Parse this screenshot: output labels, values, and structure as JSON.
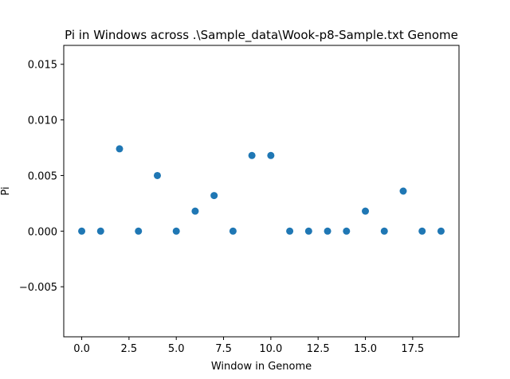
{
  "chart_data": {
    "type": "scatter",
    "title": "Pi in Windows across .\\Sample_data\\Wook-p8-Sample.txt Genome",
    "xlabel": "Window in Genome",
    "ylabel": "Pi",
    "xlim": [
      -0.95,
      19.95
    ],
    "ylim": [
      -0.0095,
      0.0167
    ],
    "xticks": [
      0.0,
      2.5,
      5.0,
      7.5,
      10.0,
      12.5,
      15.0,
      17.5
    ],
    "xtick_labels": [
      "0.0",
      "2.5",
      "5.0",
      "7.5",
      "10.0",
      "12.5",
      "15.0",
      "17.5"
    ],
    "yticks": [
      -0.005,
      0.0,
      0.005,
      0.01,
      0.015
    ],
    "ytick_labels": [
      "−0.005",
      "0.000",
      "0.005",
      "0.010",
      "0.015"
    ],
    "grid": false,
    "marker_color": "#1f77b4",
    "series": [
      {
        "x": [
          0,
          1,
          2,
          3,
          4,
          5,
          6,
          7,
          8,
          9,
          10,
          11,
          12,
          13,
          14,
          15,
          16,
          17,
          18,
          19
        ],
        "y": [
          0.0,
          0.0,
          0.0074,
          0.0,
          0.005,
          0.0,
          0.0018,
          0.0032,
          0.0,
          0.0068,
          0.0068,
          0.0,
          0.0,
          0.0,
          0.0,
          0.0018,
          0.0,
          0.0036,
          0.0,
          0.0
        ]
      }
    ]
  }
}
